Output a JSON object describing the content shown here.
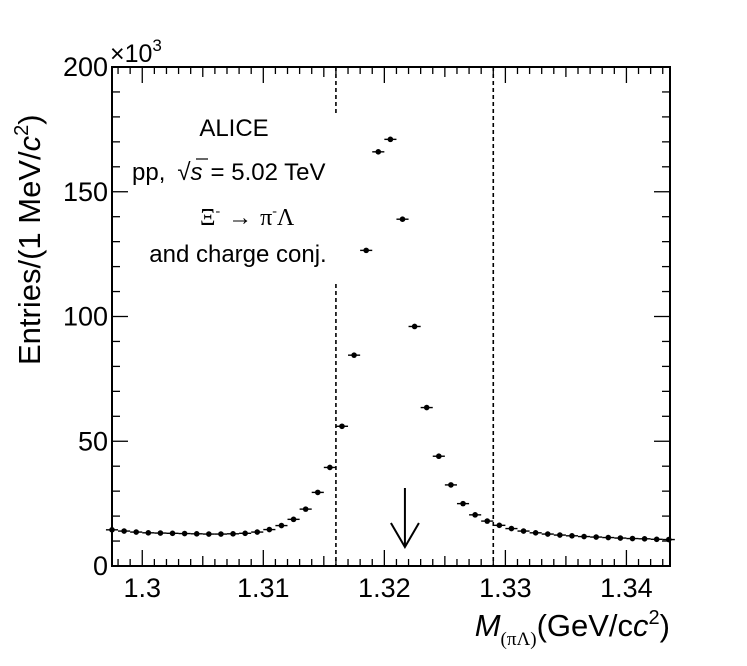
{
  "chart_data": {
    "type": "scatter",
    "xlabel_var": "M",
    "xlabel_sub": "(πΛ)",
    "xlabel_unit": "(GeV/c",
    "xlabel_unit_sup": "2",
    "xlabel_close": ")",
    "ylabel_main": "Entries/(1 MeV/",
    "ylabel_c": "c",
    "ylabel_sup": "2",
    "ylabel_close": ")",
    "y_multiplier": "×10",
    "y_multiplier_exp": "3",
    "xlim": [
      1.2975,
      1.3436
    ],
    "ylim": [
      0,
      200
    ],
    "x_ticks": [
      "1.3",
      "1.31",
      "1.32",
      "1.33",
      "1.34"
    ],
    "x_tick_values": [
      1.3,
      1.31,
      1.32,
      1.33,
      1.34
    ],
    "y_ticks": [
      "0",
      "50",
      "100",
      "150",
      "200"
    ],
    "y_tick_values": [
      0,
      50,
      100,
      150,
      200
    ],
    "dashed_lines_x": [
      1.316,
      1.329
    ],
    "arrow_x": 1.3217,
    "annotations": {
      "line1": "ALICE",
      "line2_pre": "pp,",
      "line2_sqrt": "√",
      "line2_s": "s",
      "line2_post": "= 5.02 TeV",
      "line3_xi": "Ξ",
      "line3_minus": "-",
      "line3_arrow": "→",
      "line3_pi": "π",
      "line3_minus2": "-",
      "line3_lambda": "Λ",
      "line4": "and charge conj."
    },
    "series": [
      {
        "x": [
          1.2975,
          1.2985,
          1.2995,
          1.3005,
          1.3015,
          1.3025,
          1.3035,
          1.3045,
          1.3055,
          1.3065,
          1.3075,
          1.3085,
          1.3095,
          1.3105,
          1.3115,
          1.3125,
          1.3135,
          1.3145,
          1.3155,
          1.3165,
          1.3175,
          1.3185,
          1.3195,
          1.3205,
          1.3215,
          1.3225,
          1.3235,
          1.3245,
          1.3255,
          1.3265,
          1.3275,
          1.3285,
          1.3295,
          1.3305,
          1.3315,
          1.3325,
          1.3335,
          1.3345,
          1.3355,
          1.3365,
          1.3375,
          1.3385,
          1.3395,
          1.3405,
          1.3415,
          1.3425,
          1.3435
        ],
        "y": [
          14.5,
          14.0,
          13.6,
          13.3,
          13.2,
          13.1,
          13.0,
          12.9,
          12.8,
          12.8,
          12.9,
          13.1,
          13.6,
          14.6,
          16.2,
          18.7,
          22.8,
          29.5,
          39.5,
          56.0,
          84.5,
          126.5,
          166.0,
          171.0,
          139.0,
          96.0,
          63.5,
          44.0,
          32.5,
          25.0,
          20.5,
          18.0,
          16.3,
          15.0,
          14.0,
          13.3,
          12.8,
          12.4,
          12.1,
          11.8,
          11.6,
          11.4,
          11.2,
          11.0,
          10.9,
          10.7,
          10.6
        ]
      }
    ]
  }
}
